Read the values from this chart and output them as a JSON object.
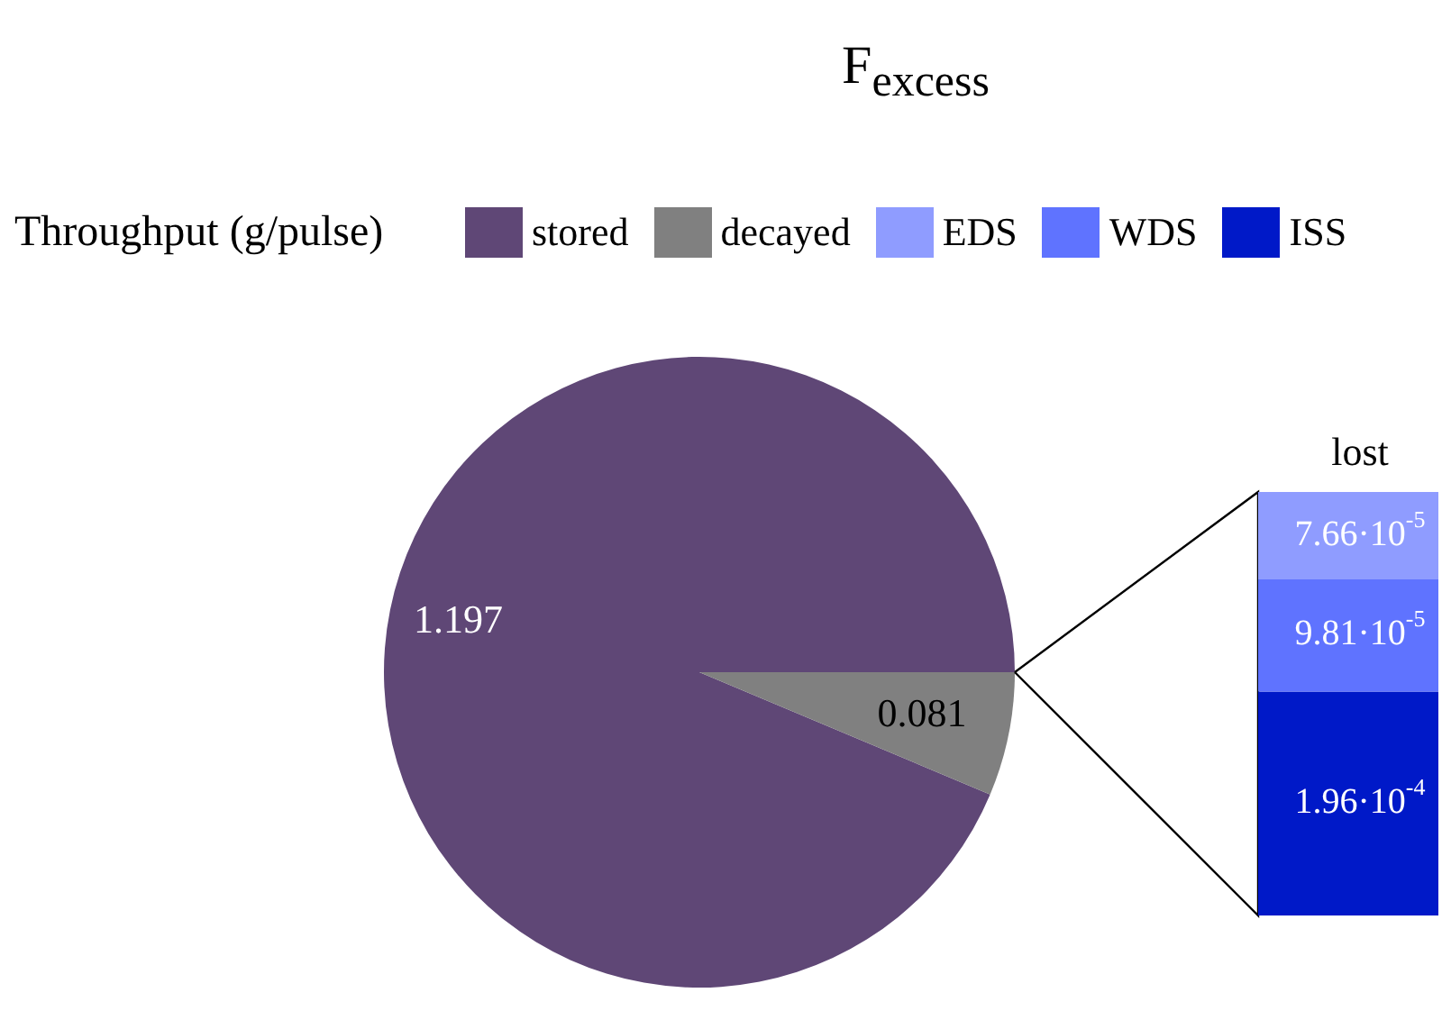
{
  "chart_data": [
    {
      "type": "pie",
      "title": "F$_{excess}$",
      "legend_title": "Throughput (g/pulse)",
      "legend": "top",
      "categories": [
        "stored",
        "decayed"
      ],
      "values": [
        1.197,
        0.081
      ],
      "colors": [
        "#5f4776",
        "#808080"
      ],
      "data_labels": true
    },
    {
      "type": "bar",
      "title": "lost",
      "stacked": true,
      "categories": [
        null
      ],
      "tick_labels": false,
      "legend": "top",
      "series": [
        {
          "name": "ISS",
          "color": "#0019c8",
          "values": [
            0.000196
          ],
          "value_labels": [
            "1.96·10$^{-4}$"
          ]
        },
        {
          "name": "WDS",
          "color": "#5f73ff",
          "values": [
            9.81e-05
          ],
          "value_labels": [
            "9.81·10$^{-5}$"
          ]
        },
        {
          "name": "EDS",
          "color": "#8f9cff",
          "values": [
            7.66e-05
          ],
          "value_labels": [
            "7.66·10$^{-5}$"
          ]
        }
      ]
    }
  ]
}
